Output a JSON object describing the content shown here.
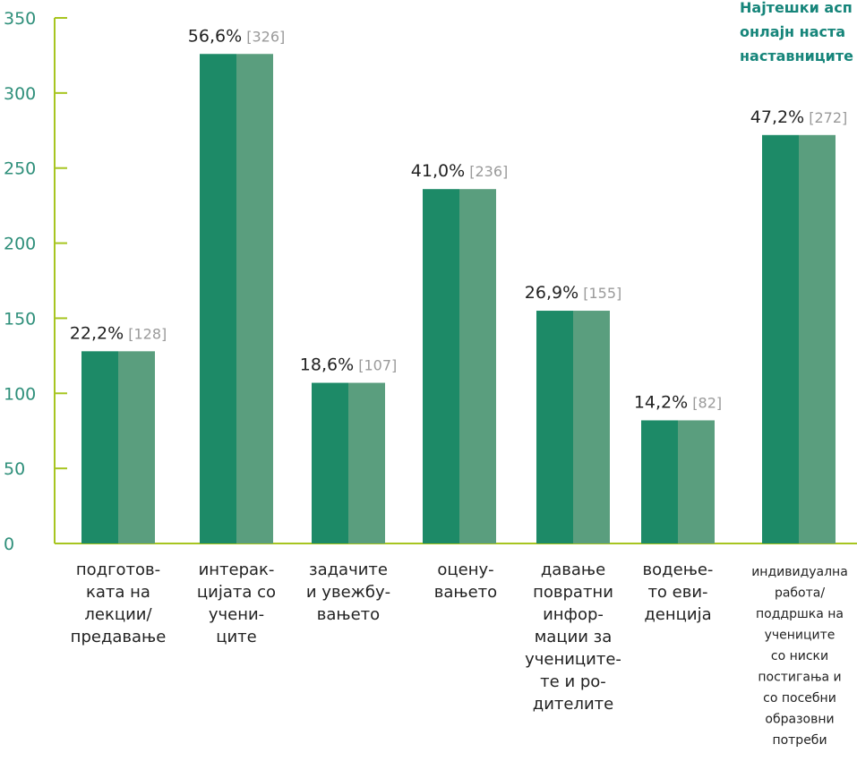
{
  "chart_data": {
    "type": "bar",
    "title_lines": [
      "Најтешки асп",
      "онлајн наста",
      "наставниците"
    ],
    "ylim": [
      0,
      350
    ],
    "yticks": [
      0,
      50,
      100,
      150,
      200,
      250,
      300,
      350
    ],
    "categories": [
      [
        "подготов-",
        "ката на",
        "лекции/",
        "предавање"
      ],
      [
        "интерак-",
        "цијата со",
        "учени-",
        "ците"
      ],
      [
        "задачите",
        "и увежбу-",
        "вањето"
      ],
      [
        "оцену-",
        "вањето"
      ],
      [
        "давање",
        "повратни",
        "инфор-",
        "мации за",
        "учениците-",
        "те и ро-",
        "дителите"
      ],
      [
        "водење-",
        "то еви-",
        "денција"
      ],
      [
        "индивидуална",
        "работа/",
        "поддршка на",
        "учениците",
        "со ниски",
        "постигања и",
        "со посебни",
        "образовни",
        "потреби"
      ]
    ],
    "values": [
      128,
      326,
      107,
      236,
      155,
      82,
      272
    ],
    "percent_labels": [
      "22,2%",
      "56,6%",
      "18,6%",
      "41,0%",
      "26,9%",
      "14,2%",
      "47,2%"
    ],
    "count_labels": [
      "[128]",
      "[326]",
      "[107]",
      "[236]",
      "[155]",
      "[82]",
      "[272]"
    ],
    "colors": {
      "bar_dark": "#1d8a67",
      "bar_light": "#5a9e7e",
      "axis": "#a7c520",
      "tick_text": "#2e8f7a",
      "title": "#16857a"
    }
  }
}
